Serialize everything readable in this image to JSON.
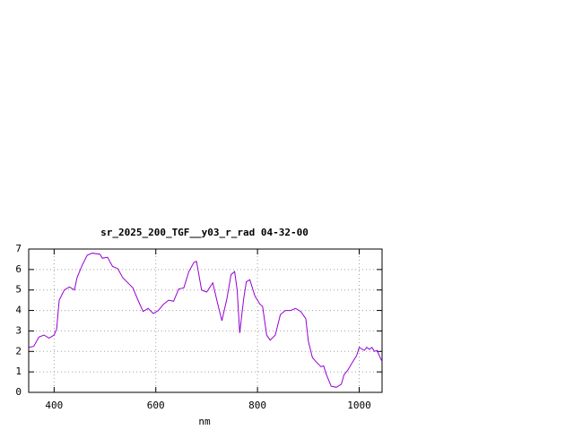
{
  "chart_data": {
    "type": "line",
    "title": "sr_2025_200_TGF__y03_r_rad 04-32-00",
    "x_label": "nm",
    "x": [
      350,
      360,
      370,
      380,
      390,
      400,
      405,
      410,
      420,
      430,
      440,
      445,
      455,
      465,
      475,
      490,
      495,
      505,
      515,
      525,
      535,
      545,
      555,
      565,
      575,
      585,
      595,
      605,
      615,
      625,
      635,
      645,
      655,
      665,
      675,
      680,
      690,
      700,
      712,
      720,
      730,
      740,
      748,
      755,
      760,
      765,
      773,
      778,
      785,
      795,
      805,
      810,
      818,
      825,
      835,
      845,
      855,
      865,
      875,
      885,
      895,
      900,
      908,
      915,
      925,
      930,
      935,
      945,
      955,
      965,
      970,
      978,
      985,
      995,
      1000,
      1010,
      1015,
      1020,
      1025,
      1030,
      1035,
      1045
    ],
    "values": [
      2.2,
      2.25,
      2.7,
      2.8,
      2.65,
      2.8,
      3.1,
      4.5,
      5.0,
      5.15,
      5.0,
      5.6,
      6.2,
      6.7,
      6.8,
      6.75,
      6.55,
      6.6,
      6.15,
      6.05,
      5.6,
      5.35,
      5.1,
      4.5,
      3.95,
      4.1,
      3.85,
      4.0,
      4.3,
      4.5,
      4.45,
      5.05,
      5.1,
      5.9,
      6.35,
      6.4,
      5.0,
      4.9,
      5.35,
      4.5,
      3.5,
      4.6,
      5.75,
      5.9,
      5.0,
      2.9,
      4.6,
      5.4,
      5.5,
      4.7,
      4.3,
      4.2,
      2.8,
      2.55,
      2.8,
      3.8,
      4.0,
      4.0,
      4.1,
      3.95,
      3.6,
      2.5,
      1.7,
      1.5,
      1.25,
      1.3,
      0.9,
      0.3,
      0.25,
      0.4,
      0.85,
      1.1,
      1.4,
      1.8,
      2.2,
      2.05,
      2.2,
      2.1,
      2.2,
      2.0,
      2.05,
      1.5
    ],
    "color": "#9400d3",
    "xlim": [
      350,
      1045
    ],
    "xticks": [
      400,
      600,
      800,
      1000
    ],
    "ylim": [
      0,
      7
    ],
    "yticks": [
      0,
      1,
      2,
      3,
      4,
      5,
      6,
      7
    ],
    "grid": true
  }
}
